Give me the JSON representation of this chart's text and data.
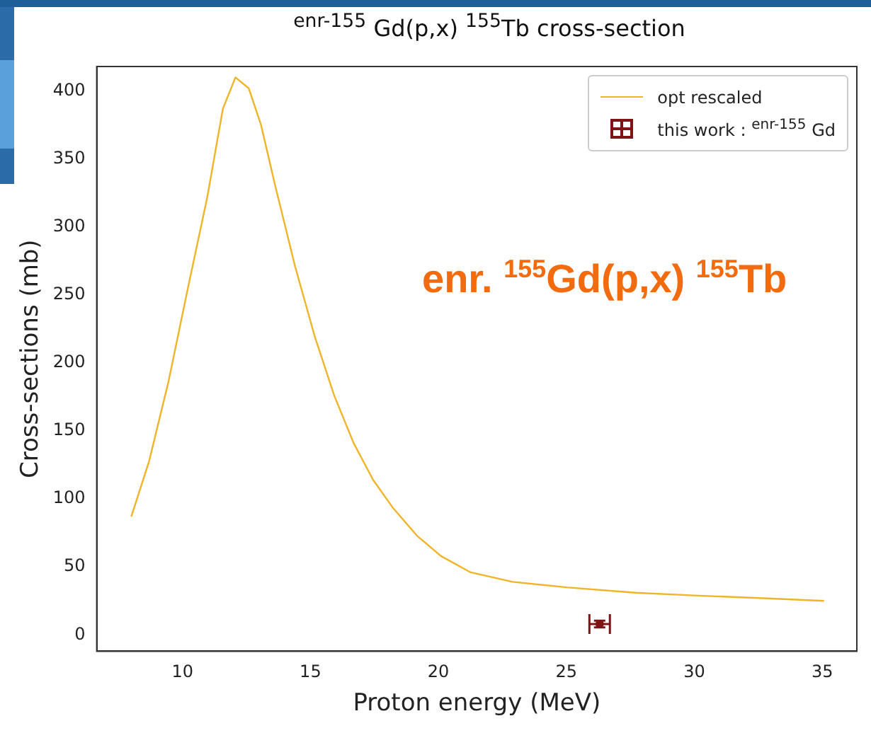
{
  "chart_data": {
    "type": "line",
    "title": "$^{enr-155}$ Gd(p,x) $^{155}$Tb cross-section",
    "xlabel": "Proton energy (MeV)",
    "ylabel": "Cross-sections (mb)",
    "xlim": [
      6.65,
      36.35
    ],
    "ylim": [
      -12,
      418
    ],
    "xticks": [
      10,
      15,
      20,
      25,
      30,
      35
    ],
    "yticks": [
      0,
      50,
      100,
      150,
      200,
      250,
      300,
      350,
      400
    ],
    "grid": false,
    "legend": "top right",
    "annotations": [
      "enr. $^{155}$Gd(p,x) $^{155}$Tb"
    ],
    "series": [
      {
        "name": "opt rescaled",
        "color": "#f0b429",
        "line_style": "solid",
        "x": [
          8,
          8.7,
          9.45,
          10.2,
          10.97,
          11.58,
          12.07,
          12.59,
          13.07,
          13.64,
          14.4,
          15.16,
          15.93,
          16.69,
          17.45,
          18.2,
          19.16,
          20.1,
          21.26,
          22.9,
          25,
          27.7,
          30,
          32.7,
          35.07
        ],
        "values": [
          87,
          128,
          186,
          254,
          322,
          387,
          410,
          402,
          375,
          329,
          271,
          220,
          176,
          141,
          114,
          94,
          73,
          58,
          46,
          39,
          35,
          31,
          29,
          27,
          25
        ]
      },
      {
        "name": "this work : $^{enr-155}$ Gd",
        "type": "scatter",
        "color": "#7f1416",
        "x": [
          26.3
        ],
        "values": [
          8
        ],
        "errors": [
          2.5
        ],
        "xerrors": [
          0.4
        ]
      }
    ]
  }
}
